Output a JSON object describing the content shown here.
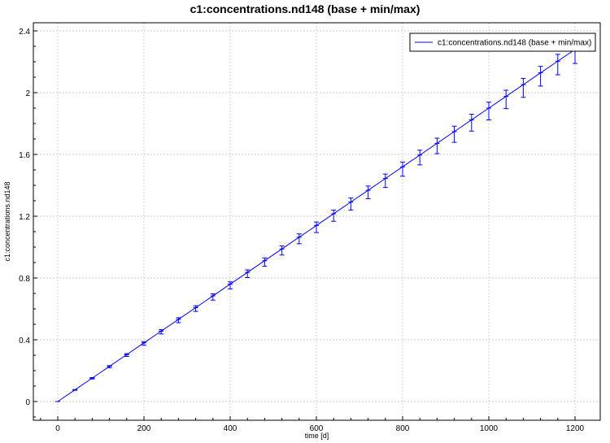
{
  "chart_data": {
    "type": "line",
    "title": "c1:concentrations.nd148 (base + min/max)",
    "xlabel": "time [d]",
    "ylabel": "c1:concentrations.nd148",
    "xlim": [
      -55,
      1235
    ],
    "ylim": [
      -0.12,
      2.42
    ],
    "xticks": [
      0,
      200,
      400,
      600,
      800,
      1000,
      1200
    ],
    "yticks": [
      0,
      0.4,
      0.8,
      1.2,
      1.6,
      2,
      2.4
    ],
    "ytick_labels": [
      "0",
      "0.4",
      "0.8",
      "1.2",
      "1.6",
      "2",
      "2.4"
    ],
    "grid": true,
    "legend_position": "top-right",
    "series": [
      {
        "name": "c1:concentrations.nd148 (base + min/max)",
        "color": "#0000ff",
        "x": [
          0,
          40,
          80,
          120,
          160,
          200,
          240,
          280,
          320,
          360,
          400,
          440,
          480,
          520,
          560,
          600,
          640,
          680,
          720,
          760,
          800,
          840,
          880,
          920,
          960,
          1000,
          1040,
          1080,
          1120,
          1160,
          1200
        ],
        "y": [
          0,
          0.076,
          0.152,
          0.228,
          0.304,
          0.38,
          0.456,
          0.532,
          0.608,
          0.684,
          0.76,
          0.836,
          0.912,
          0.988,
          1.064,
          1.14,
          1.216,
          1.292,
          1.368,
          1.444,
          1.52,
          1.596,
          1.672,
          1.748,
          1.824,
          1.9,
          1.976,
          2.052,
          2.128,
          2.204,
          2.28
        ],
        "ymin_frac": 0.96,
        "ymax_frac": 1.02
      }
    ]
  }
}
